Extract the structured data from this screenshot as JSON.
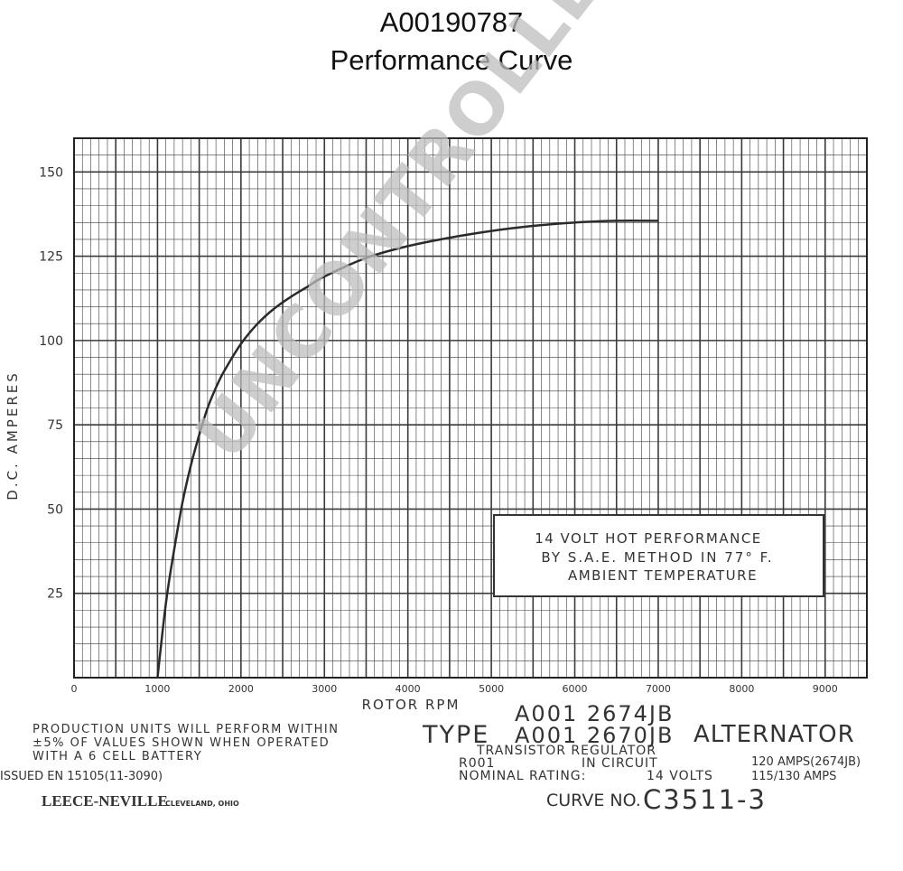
{
  "header": {
    "part_number": "A00190787",
    "subtitle": "Performance Curve"
  },
  "chart_data": {
    "type": "line",
    "title": "",
    "xlabel": "ROTOR RPM",
    "ylabel": "D.C. AMPERES",
    "xlim": [
      0,
      9500
    ],
    "ylim": [
      0,
      160
    ],
    "x_ticks": [
      0,
      1000,
      2000,
      3000,
      4000,
      5000,
      6000,
      7000,
      8000,
      9000
    ],
    "y_ticks": [
      25,
      50,
      75,
      100,
      125,
      150
    ],
    "grid": true,
    "series": [
      {
        "x": [
          1000,
          1100,
          1200,
          1300,
          1400,
          1500,
          1600,
          1700,
          1800,
          2000,
          2200,
          2400,
          2600,
          2800,
          3000,
          3500,
          4000,
          4500,
          5000,
          5500,
          6000,
          6500,
          7000
        ],
        "y": [
          0,
          22,
          38,
          52,
          63,
          72,
          80,
          86,
          91,
          99,
          105,
          109.5,
          113,
          116,
          119,
          124.5,
          128,
          130.5,
          132.5,
          134,
          135,
          135.5,
          135.5
        ]
      }
    ],
    "annotation": {
      "line1": "14 VOLT HOT PERFORMANCE",
      "line2": "BY S.A.E. METHOD IN 77° F.",
      "line3": "AMBIENT TEMPERATURE"
    }
  },
  "footer": {
    "note_line1": "PRODUCTION UNITS WILL PERFORM WITHIN",
    "note_line2": "±5% OF VALUES SHOWN WHEN OPERATED",
    "note_line3": "WITH A 6 CELL BATTERY",
    "issued": "ISSUED EN 15105(11-3090)",
    "maker": "LEECE-NEVILLE",
    "city": "CLEVELAND, OHIO",
    "type_label": "TYPE",
    "model_1": "A001 2674JB",
    "model_2": "A001 2670JB",
    "product": "ALTERNATOR",
    "regulator": "TRANSISTOR REGULATOR",
    "regulator_code": "R001",
    "regulator_status": "IN CIRCUIT",
    "nominal_label": "NOMINAL RATING:",
    "nominal_volts": "14 VOLTS",
    "amps_1": "120 AMPS(2674JB)",
    "amps_2": "115/130 AMPS",
    "curve_label": "CURVE NO.",
    "curve_number": "C3511-3"
  },
  "watermark": "UNCONTROLLED COPY"
}
